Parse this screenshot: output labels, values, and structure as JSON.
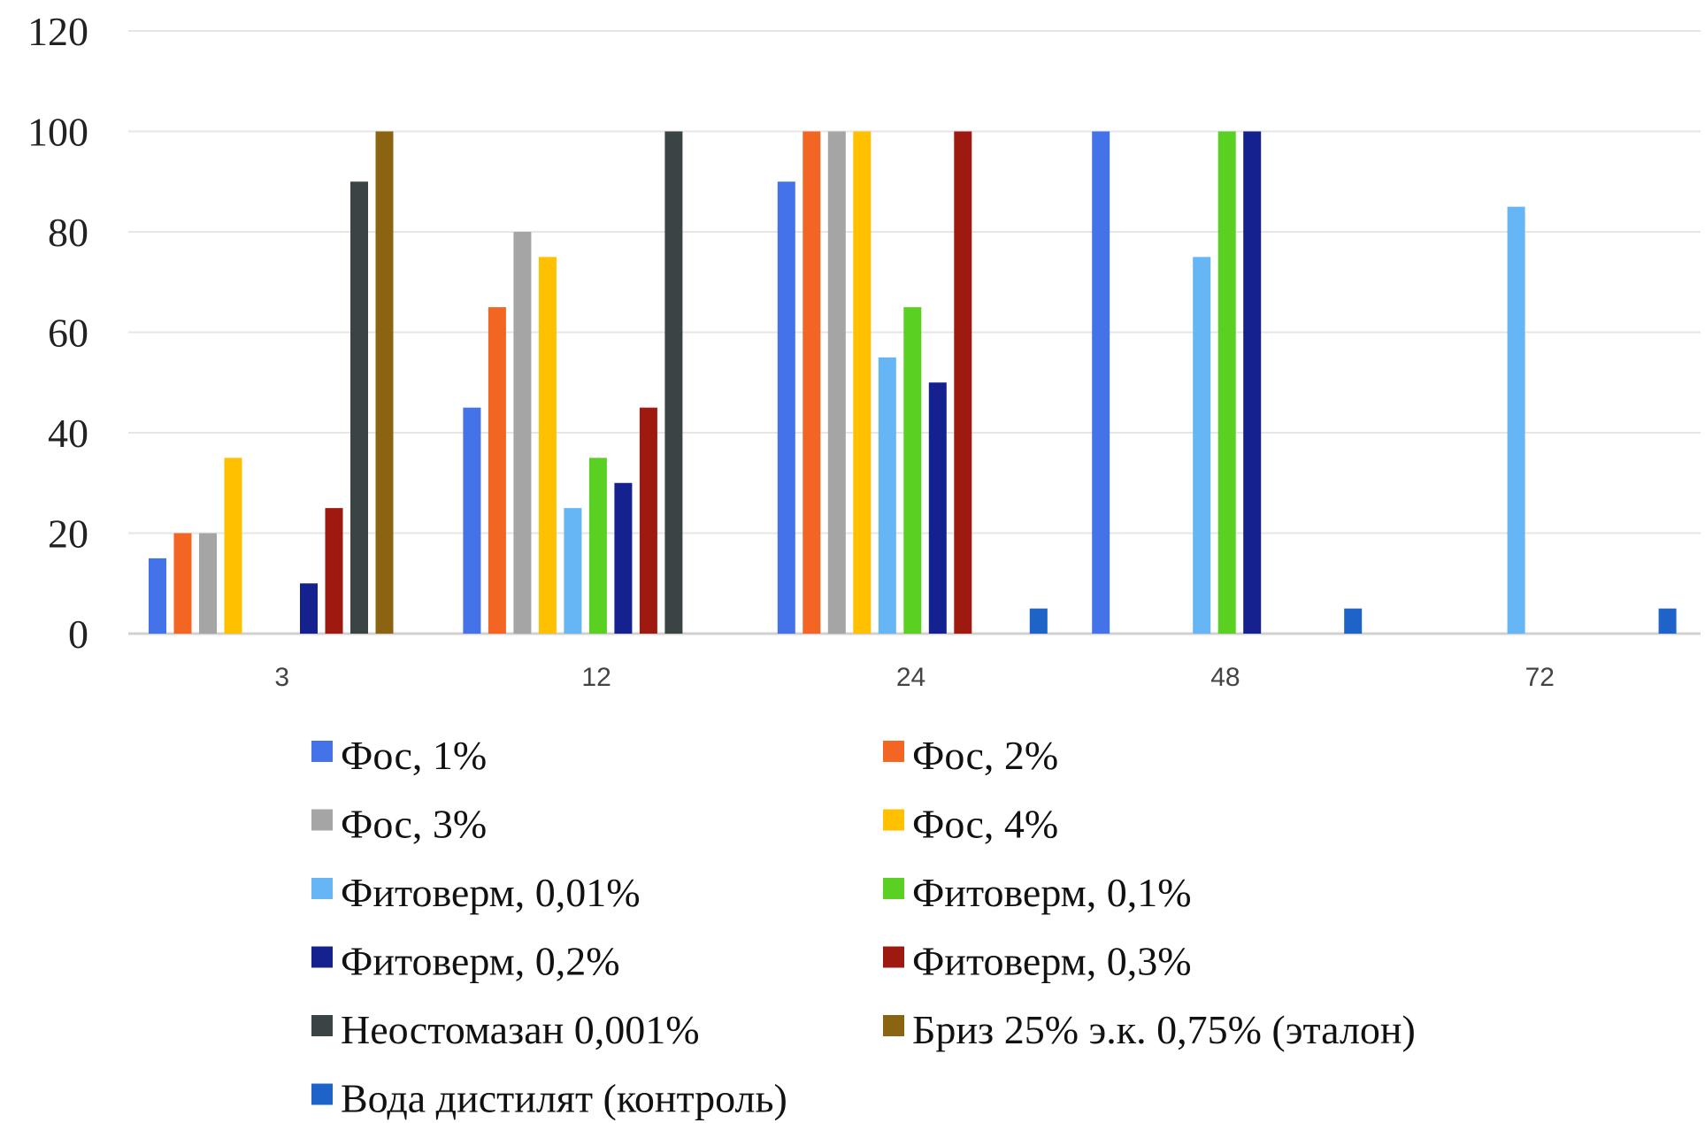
{
  "chart_data": {
    "type": "bar",
    "categories": [
      "3",
      "12",
      "24",
      "48",
      "72"
    ],
    "ylim": [
      0,
      120
    ],
    "yticks": [
      0,
      20,
      40,
      60,
      80,
      100,
      120
    ],
    "grid": true,
    "legend_position": "bottom",
    "series": [
      {
        "name": "Фос, 1%",
        "color": "#4472e8",
        "values": [
          15,
          45,
          90,
          100,
          0
        ]
      },
      {
        "name": "Фос, 2%",
        "color": "#f26522",
        "values": [
          20,
          65,
          100,
          0,
          0
        ]
      },
      {
        "name": "Фос, 3%",
        "color": "#a5a5a5",
        "values": [
          20,
          80,
          100,
          0,
          0
        ]
      },
      {
        "name": "Фос, 4%",
        "color": "#ffc000",
        "values": [
          35,
          75,
          100,
          0,
          0
        ]
      },
      {
        "name": "Фитоверм, 0,01%",
        "color": "#66b5f5",
        "values": [
          0,
          25,
          55,
          75,
          85
        ]
      },
      {
        "name": "Фитоверм, 0,1%",
        "color": "#5ad122",
        "values": [
          0,
          35,
          65,
          100,
          0
        ]
      },
      {
        "name": "Фитоверм, 0,2%",
        "color": "#14218f",
        "values": [
          10,
          30,
          50,
          100,
          0
        ]
      },
      {
        "name": "Фитоверм, 0,3%",
        "color": "#9e1a10",
        "values": [
          25,
          45,
          100,
          0,
          0
        ]
      },
      {
        "name": "Неостомазан 0,001%",
        "color": "#3b4445",
        "values": [
          90,
          100,
          0,
          0,
          0
        ]
      },
      {
        "name": "Бриз 25% э.к. 0,75% (эталон)",
        "color": "#8a6410",
        "values": [
          100,
          0,
          0,
          0,
          0
        ]
      },
      {
        "name": "Вода дистилят (контроль)",
        "color": "#1e63c8",
        "values": [
          0,
          0,
          5,
          5,
          5
        ]
      }
    ]
  }
}
